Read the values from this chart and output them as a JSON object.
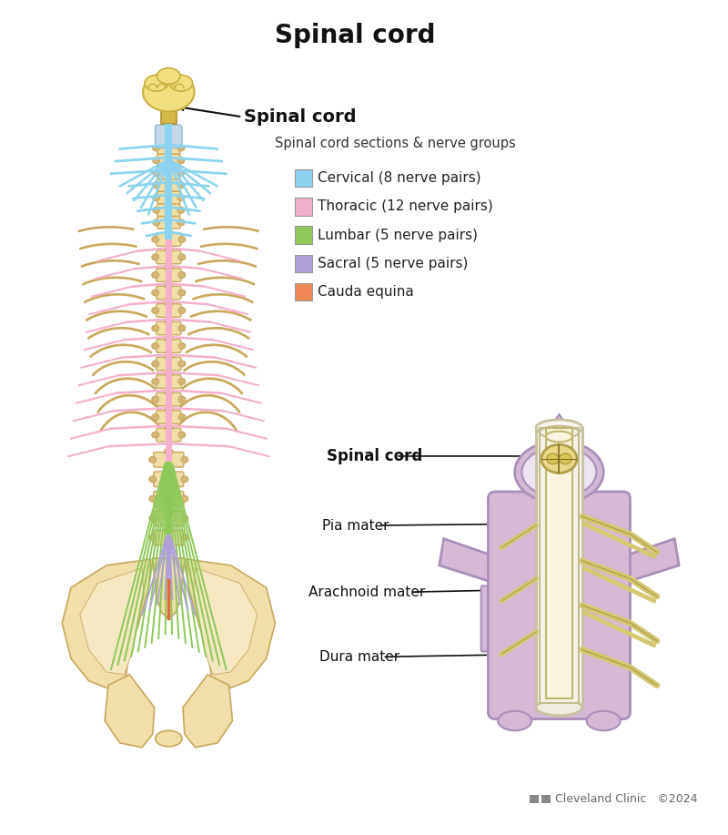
{
  "title": "Spinal cord",
  "title_fontsize": 20,
  "title_fontweight": "bold",
  "bg_color": "#ffffff",
  "legend_title": "Spinal cord sections & nerve groups",
  "legend_items": [
    {
      "label": "Cervical (8 nerve pairs)",
      "color": "#8dd4f0"
    },
    {
      "label": "Thoracic (12 nerve pairs)",
      "color": "#f4b0cc"
    },
    {
      "label": "Lumbar (5 nerve pairs)",
      "color": "#8ec858"
    },
    {
      "label": "Sacral (5 nerve pairs)",
      "color": "#b0a0d8"
    },
    {
      "label": "Cauda equina",
      "color": "#f08858"
    }
  ],
  "spinal_cord_label": "Spinal cord",
  "pia_mater_label": "Pia mater",
  "arachnoid_mater_label": "Arachnoid mater",
  "dura_mater_label": "Dura mater",
  "credit": "Cleveland Clinic   ©2024",
  "bone_color": "#f0dfa8",
  "bone_outline": "#c8a860",
  "bone_node_color": "#d4b878",
  "cervical_color": "#8dd4f0",
  "thoracic_color": "#f4b0cc",
  "lumbar_color": "#8ec858",
  "sacral_color": "#b0a0d8",
  "cauda_color": "#e06840",
  "cord_color": "#9090c8",
  "vertebra_color": "#d4b8d4",
  "vert_outline": "#a890b8",
  "cream_color": "#f8f4e0",
  "dura_color": "#f0ecdc",
  "nerve_color": "#d4c870",
  "nerve_outline": "#b0a050"
}
